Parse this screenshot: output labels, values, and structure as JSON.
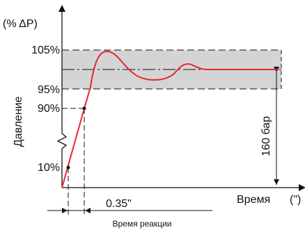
{
  "diagram": {
    "y_unit_label": "(% ΔP)",
    "y_axis_title": "Давление",
    "x_axis_title": "Время",
    "x_unit_label": "(\")",
    "levels": {
      "upper": "105%",
      "lower": "95%",
      "t90": "90%",
      "t10": "10%"
    },
    "pressure_span_label": "160 бар",
    "response_time_value": "0.35\"",
    "response_time_label": "Время реакции"
  },
  "colors": {
    "tolerance_band": "#d4d4d4",
    "response_curve": "#e8272b",
    "axes": "#111111"
  }
}
